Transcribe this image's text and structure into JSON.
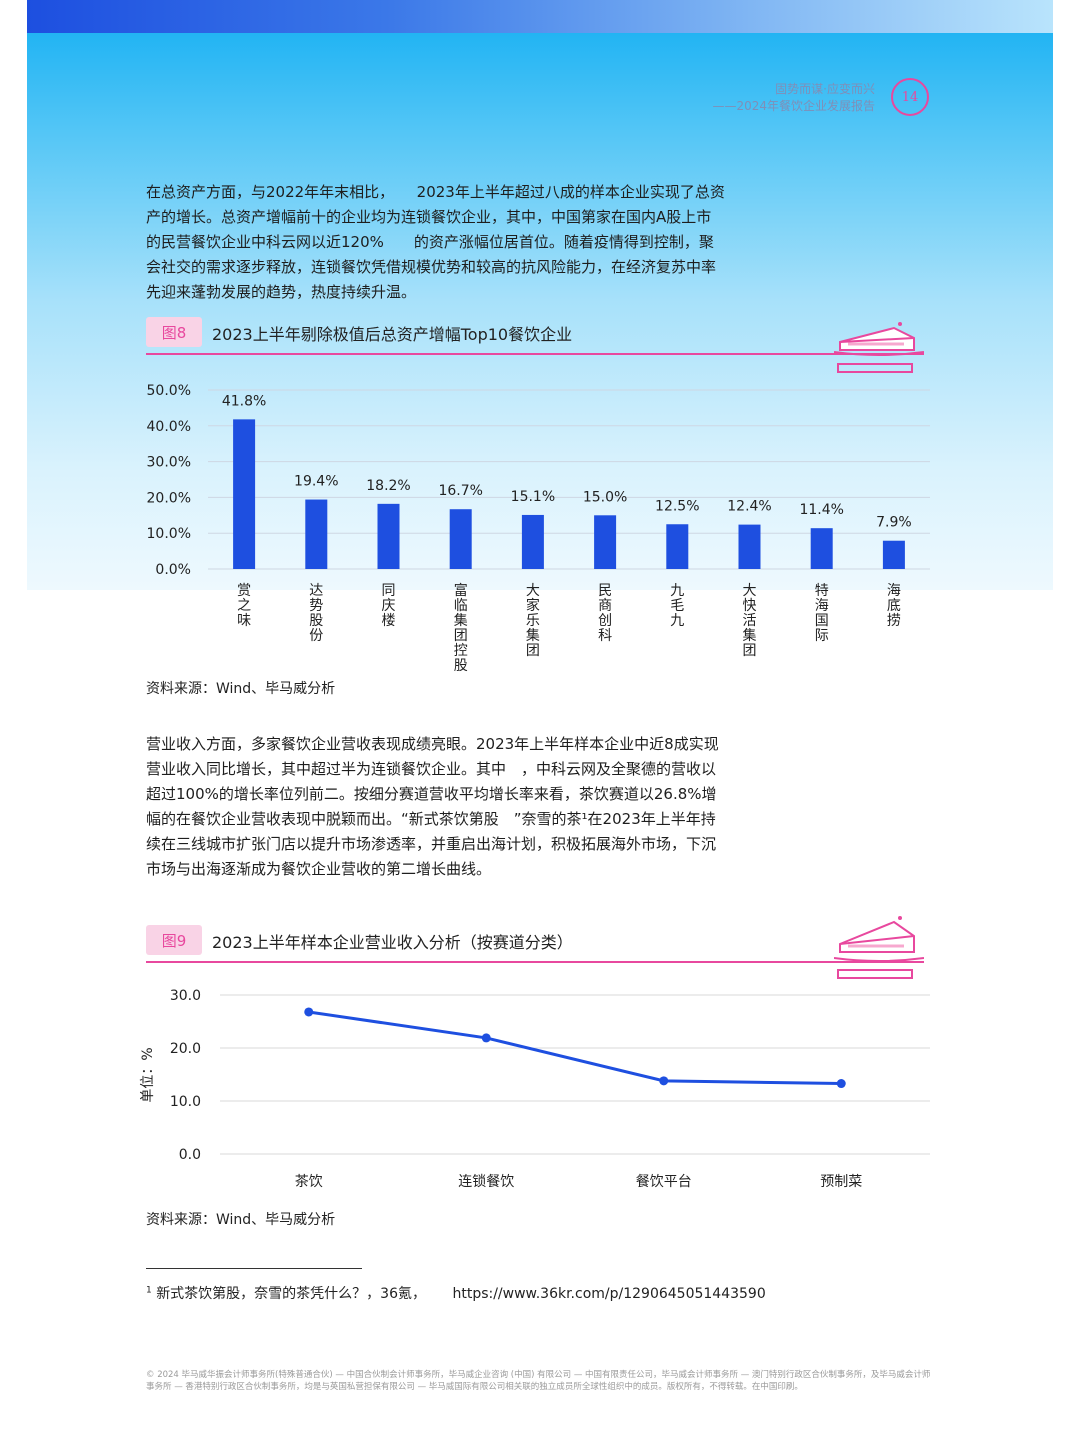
{
  "header": {
    "line1": "固势而谋·应变而兴",
    "line2": "——2024年餐饮企业发展报告",
    "page_number": "14",
    "accent_color": "#e8489e"
  },
  "intro_paragraph": "在总资产方面，与2022年年末相比，　　2023年上半年超过八成的样本企业实现了总资产的增长。总资产增幅前十的企业均为连锁餐饮企业，其中，中国第家在国内A股上市的民营餐饮企业中科云网以近120%　　的资产涨幅位居首位。随着疫情得到控制，聚会社交的需求逐步释放，连锁餐饮凭借规模优势和较高的抗风险能力，在经济复苏中率先迎来蓬勃发展的趋势，热度持续升温。",
  "figure8": {
    "tag": "图8",
    "title": "2023上半年剔除极值后总资产增幅Top10餐饮企业",
    "source": "资料来源：Wind、毕马威分析"
  },
  "revenue_paragraph": "营业收入方面，多家餐饮企业营收表现成绩亮眼。2023年上半年样本企业中近8成实现营业收入同比增长，其中超过半为连锁餐饮企业。其中　，中科云网及全聚德的营收以超过100%的增长率位列前二。按细分赛道营收平均增长率来看，茶饮赛道以26.8%增幅的在餐饮企业营收表现中脱颖而出。“新式茶饮第股　”奈雪的茶¹在2023年上半年持续在三线城市扩张门店以提升市场渗透率，并重启出海计划，积极拓展海外市场，下沉市场与出海逐渐成为餐饮企业营收的第二增长曲线。",
  "figure9": {
    "tag": "图9",
    "title": "2023上半年样本企业营业收入分析（按赛道分类）",
    "source": "资料来源：Wind、毕马威分析"
  },
  "footnote": {
    "marker": "1",
    "text": "新式茶饮第股，奈雪的茶凭什么？，36氪，",
    "url": "https://www.36kr.com/p/1290645051443590"
  },
  "copyright": "© 2024 毕马威华振会计师事务所(特殊普通合伙) — 中国合伙制会计师事务所，毕马威企业咨询 (中国) 有限公司 — 中国有限责任公司，毕马威会计师事务所 — 澳门特别行政区合伙制事务所，及毕马威会计师事务所 — 香港特别行政区合伙制事务所，均是与英国私营担保有限公司 — 毕马威国际有限公司相关联的独立成员所全球性组织中的成员。版权所有，不得转载。在中国印刷。",
  "chart_data": [
    {
      "type": "bar",
      "categories": [
        "赏之味",
        "达势股份",
        "同庆楼",
        "富临集团控股",
        "大家乐集团",
        "民商创科",
        "九毛九",
        "大快活集团",
        "特海国际",
        "海底捞"
      ],
      "values": [
        41.8,
        19.4,
        18.2,
        16.7,
        15.1,
        15.0,
        12.5,
        12.4,
        11.4,
        7.9
      ],
      "data_labels": [
        "41.8%",
        "19.4%",
        "18.2%",
        "16.7%",
        "15.1%",
        "15.0%",
        "12.5%",
        "12.4%",
        "11.4%",
        "7.9%"
      ],
      "yticks": [
        "0.0%",
        "10.0%",
        "20.0%",
        "30.0%",
        "40.0%",
        "50.0%"
      ],
      "ylim": [
        0,
        50
      ],
      "grid": true,
      "bar_color": "#1e4fe0"
    },
    {
      "type": "line",
      "categories": [
        "茶饮",
        "连锁餐饮",
        "餐饮平台",
        "预制菜"
      ],
      "values": [
        26.8,
        21.9,
        13.8,
        13.3
      ],
      "ylabel": "单位：%",
      "yticks": [
        "0.0",
        "10.0",
        "20.0",
        "30.0"
      ],
      "ylim": [
        0,
        30
      ],
      "grid": true,
      "line_color": "#1e4fe0"
    }
  ]
}
